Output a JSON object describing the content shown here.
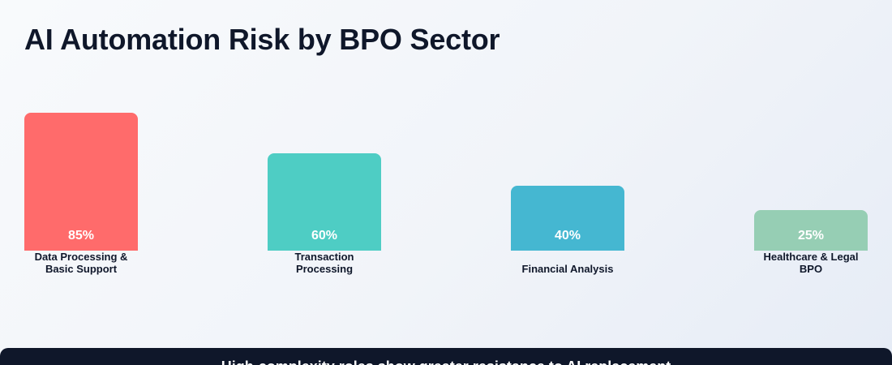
{
  "chart_data": {
    "type": "bar",
    "title": "AI Automation Risk by BPO Sector",
    "categories": [
      "Data Processing & Basic Support",
      "Transaction Processing",
      "Financial Analysis",
      "Healthcare & Legal BPO"
    ],
    "label_lines": [
      [
        "Data Processing &",
        "Basic Support"
      ],
      [
        "Transaction",
        "Processing"
      ],
      [
        "Financial Analysis"
      ],
      [
        "Healthcare & Legal",
        "BPO"
      ]
    ],
    "values": [
      85,
      60,
      40,
      25
    ],
    "value_labels": [
      "85%",
      "60%",
      "40%",
      "25%"
    ],
    "colors": [
      "#ff6b6b",
      "#4ecdc4",
      "#45b7d1",
      "#96ceb4"
    ],
    "ylim": [
      0,
      100
    ],
    "grid": false,
    "legend": "none",
    "xlabel": "",
    "ylabel": ""
  },
  "footer": {
    "text": "High-complexity roles show greater resistance to AI replacement"
  }
}
